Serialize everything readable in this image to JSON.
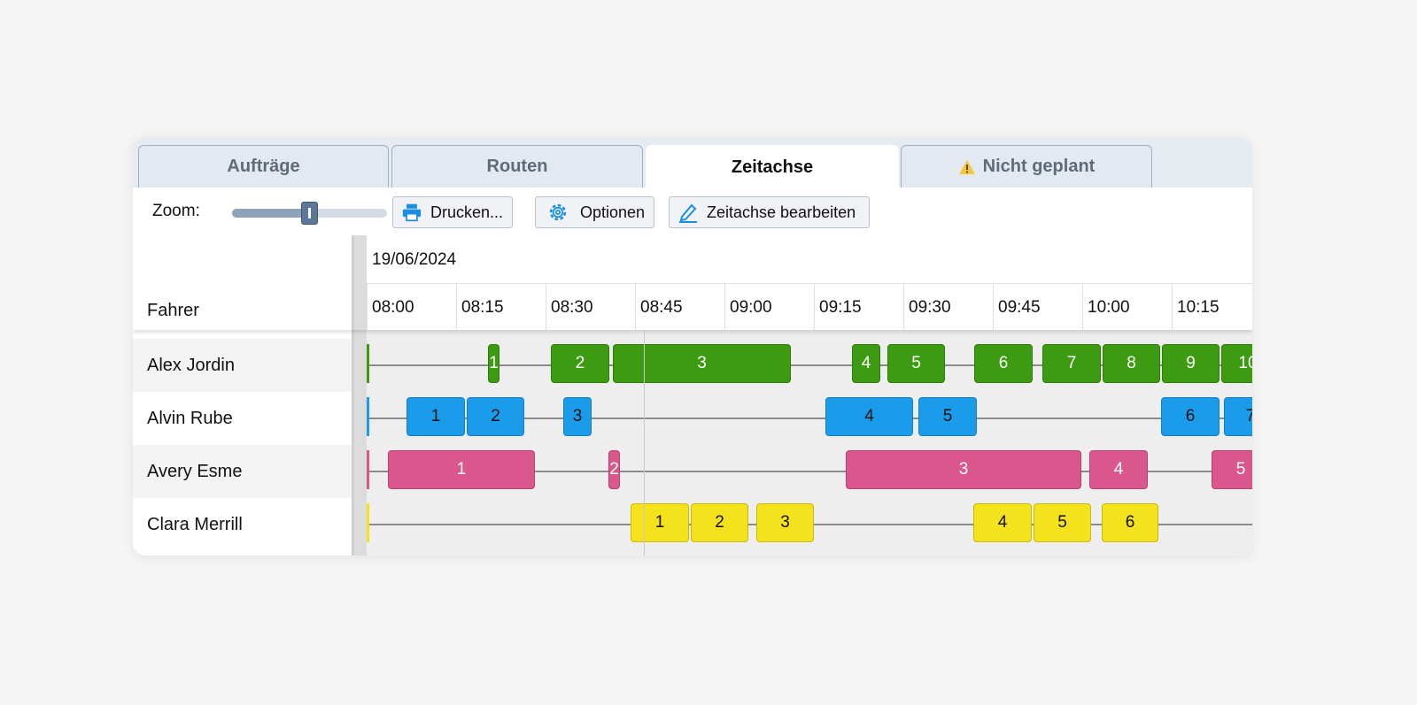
{
  "tabs": [
    "Aufträge",
    "Routen",
    "Zeitachse",
    "Nicht geplant"
  ],
  "toolbar": {
    "zoom_label": "Zoom:",
    "buttons": [
      "Drucken...",
      "Optionen",
      "Zeitachse bearbeiten"
    ]
  },
  "timeline": {
    "column_header": "Fahrer",
    "date": "19/06/2024",
    "times": [
      "08:00",
      "08:15",
      "08:30",
      "08:45",
      "09:00",
      "09:15",
      "09:30",
      "09:45",
      "10:00",
      "10:15"
    ],
    "drivers": [
      {
        "name": "Alex Jordin",
        "blocks": [
          "1",
          "2",
          "3",
          "4",
          "5",
          "6",
          "7",
          "8",
          "9",
          "10"
        ]
      },
      {
        "name": "Alvin Rube",
        "blocks": [
          "1",
          "2",
          "3",
          "4",
          "5",
          "6",
          "7"
        ]
      },
      {
        "name": "Avery Esme",
        "blocks": [
          "1",
          "2",
          "3",
          "4",
          "5"
        ]
      },
      {
        "name": "Clara Merrill",
        "blocks": [
          "1",
          "2",
          "3",
          "4",
          "5",
          "6"
        ]
      }
    ]
  }
}
